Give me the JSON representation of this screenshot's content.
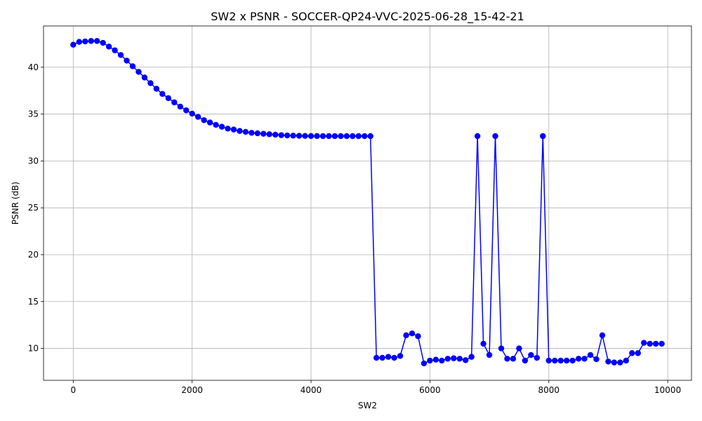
{
  "chart_data": {
    "type": "line",
    "title": "SW2 x PSNR - SOCCER-QP24-VVC-2025-06-28_15-42-21",
    "xlabel": "SW2",
    "ylabel": "PSNR (dB)",
    "xlim": [
      -500,
      10400
    ],
    "ylim": [
      6.6,
      44.4
    ],
    "xticks": [
      0,
      2000,
      4000,
      6000,
      8000,
      10000
    ],
    "yticks": [
      10,
      15,
      20,
      25,
      30,
      35,
      40
    ],
    "grid": true,
    "series_color": "#0000ff",
    "markers": true,
    "x": [
      0,
      100,
      200,
      300,
      400,
      500,
      600,
      700,
      800,
      900,
      1000,
      1100,
      1200,
      1300,
      1400,
      1500,
      1600,
      1700,
      1800,
      1900,
      2000,
      2100,
      2200,
      2300,
      2400,
      2500,
      2600,
      2700,
      2800,
      2900,
      3000,
      3100,
      3200,
      3300,
      3400,
      3500,
      3600,
      3700,
      3800,
      3900,
      4000,
      4100,
      4200,
      4300,
      4400,
      4500,
      4600,
      4700,
      4800,
      4900,
      5000,
      5100,
      5200,
      5300,
      5400,
      5500,
      5600,
      5700,
      5800,
      5900,
      6000,
      6100,
      6200,
      6300,
      6400,
      6500,
      6600,
      6700,
      6800,
      6900,
      7000,
      7100,
      7200,
      7300,
      7400,
      7500,
      7600,
      7700,
      7800,
      7900,
      8000,
      8100,
      8200,
      8300,
      8400,
      8500,
      8600,
      8700,
      8800,
      8900,
      9000,
      9100,
      9200,
      9300,
      9400,
      9500,
      9600,
      9700,
      9800,
      9900
    ],
    "y": [
      42.4,
      42.7,
      42.75,
      42.8,
      42.8,
      42.6,
      42.2,
      41.8,
      41.3,
      40.7,
      40.1,
      39.5,
      38.9,
      38.3,
      37.7,
      37.15,
      36.7,
      36.25,
      35.8,
      35.4,
      35.05,
      34.7,
      34.35,
      34.1,
      33.85,
      33.65,
      33.45,
      33.35,
      33.2,
      33.1,
      33.0,
      32.95,
      32.9,
      32.85,
      32.8,
      32.75,
      32.72,
      32.7,
      32.68,
      32.67,
      32.66,
      32.66,
      32.65,
      32.65,
      32.65,
      32.65,
      32.65,
      32.65,
      32.65,
      32.65,
      32.65,
      9.0,
      9.0,
      9.1,
      9.0,
      9.2,
      11.4,
      11.6,
      11.3,
      8.4,
      8.7,
      8.8,
      8.7,
      8.9,
      8.95,
      8.9,
      8.75,
      9.1,
      32.65,
      10.5,
      9.3,
      32.65,
      10.0,
      8.9,
      8.9,
      10.0,
      8.7,
      9.3,
      9.0,
      32.65,
      8.7,
      8.7,
      8.7,
      8.7,
      8.7,
      8.9,
      8.9,
      9.3,
      8.85,
      11.4,
      8.6,
      8.5,
      8.5,
      8.7,
      9.5,
      9.5,
      10.6,
      10.5,
      10.5,
      10.5
    ]
  }
}
